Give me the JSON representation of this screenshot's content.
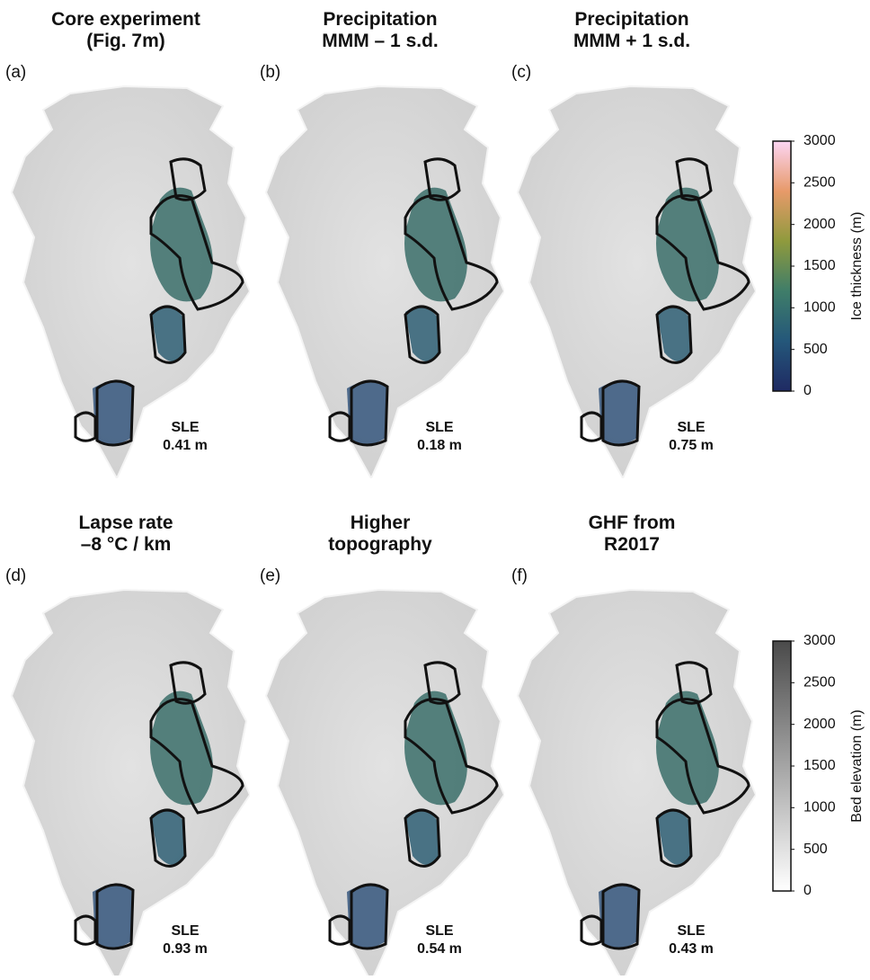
{
  "panels": [
    {
      "title": [
        "Core experiment",
        "(Fig. 7m)"
      ],
      "label": "(a)",
      "sle_label": "SLE",
      "sle": "0.41 m"
    },
    {
      "title": [
        "Precipitation",
        "MMM – 1 s.d."
      ],
      "label": "(b)",
      "sle_label": "SLE",
      "sle": "0.18 m"
    },
    {
      "title": [
        "Precipitation",
        "MMM + 1 s.d."
      ],
      "label": "(c)",
      "sle_label": "SLE",
      "sle": "0.75 m"
    },
    {
      "title": [
        "Lapse rate",
        "–8 °C / km"
      ],
      "label": "(d)",
      "sle_label": "SLE",
      "sle": "0.93 m"
    },
    {
      "title": [
        "Higher",
        "topography"
      ],
      "label": "(e)",
      "sle_label": "SLE",
      "sle": "0.54 m"
    },
    {
      "title": [
        "GHF from",
        "R2017"
      ],
      "label": "(f)",
      "sle_label": "SLE",
      "sle": "0.43 m"
    }
  ],
  "colorbars": [
    {
      "label": "Ice thickness (m)",
      "ticks": [
        0,
        500,
        1000,
        1500,
        2000,
        2500,
        3000
      ]
    },
    {
      "label": "Bed elevation (m)",
      "ticks": [
        0,
        500,
        1000,
        1500,
        2000,
        2500,
        3000
      ]
    }
  ]
}
